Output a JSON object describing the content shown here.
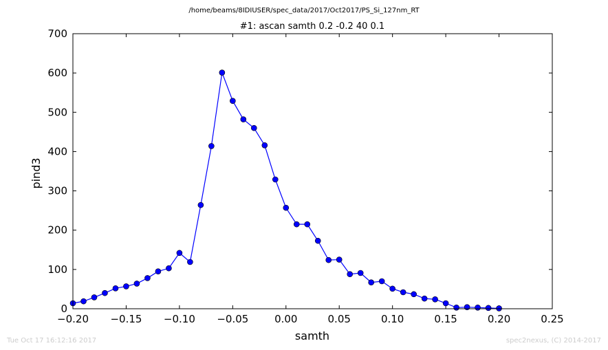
{
  "chart_data": {
    "type": "line",
    "suptitle": "/home/beams/8IDIUSER/spec_data/2017/Oct2017/PS_Si_127nm_RT",
    "title": "#1: ascan  samth 0.2 -0.2  40 0.1",
    "xlabel": "samth",
    "ylabel": "pind3",
    "xlim": [
      -0.2,
      0.25
    ],
    "ylim": [
      0,
      700
    ],
    "xticks": [
      "−0.20",
      "−0.15",
      "−0.10",
      "−0.05",
      "0.00",
      "0.05",
      "0.10",
      "0.15",
      "0.20",
      "0.25"
    ],
    "yticks": [
      "0",
      "100",
      "200",
      "300",
      "400",
      "500",
      "600",
      "700"
    ],
    "grid": false,
    "series": [
      {
        "color": "#0000ff",
        "marker": "circle",
        "x": [
          -0.2,
          -0.19,
          -0.18,
          -0.17,
          -0.16,
          -0.15,
          -0.14,
          -0.13,
          -0.12,
          -0.11,
          -0.1,
          -0.09,
          -0.08,
          -0.07,
          -0.06,
          -0.05,
          -0.04,
          -0.03,
          -0.02,
          -0.01,
          0.0,
          0.01,
          0.02,
          0.03,
          0.04,
          0.05,
          0.06,
          0.07,
          0.08,
          0.09,
          0.1,
          0.11,
          0.12,
          0.13,
          0.14,
          0.15,
          0.16,
          0.17,
          0.18,
          0.19,
          0.2
        ],
        "y": [
          14,
          19,
          29,
          40,
          52,
          57,
          64,
          78,
          95,
          103,
          142,
          119,
          264,
          414,
          601,
          529,
          482,
          460,
          416,
          329,
          257,
          215,
          215,
          173,
          124,
          125,
          88,
          91,
          67,
          70,
          51,
          42,
          37,
          26,
          24,
          14,
          3,
          4,
          3,
          2,
          1
        ]
      }
    ]
  },
  "footer": {
    "timestamp": "Tue Oct 17 16:12:16 2017",
    "credit": "spec2nexus, (C) 2014-2017"
  }
}
